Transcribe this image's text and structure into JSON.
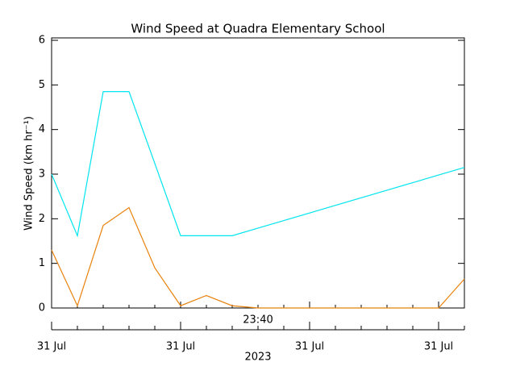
{
  "chart_data": {
    "type": "line",
    "title": "Wind Speed at Quadra Elementary School",
    "y_label": "Wind Speed (km hr⁻¹)",
    "annotations": [
      "23:40",
      "2023"
    ],
    "categories": [
      "31 Jul",
      null,
      null,
      null,
      null,
      "31 Jul",
      null,
      null,
      null,
      null,
      "31 Jul",
      null,
      null,
      null,
      null,
      "31 Jul",
      null
    ],
    "series": [
      {
        "color": "#00e5ee",
        "values": [
          3.0,
          1.62,
          4.85,
          4.85,
          3.24,
          1.62,
          1.62,
          1.62,
          1.79,
          1.96,
          2.13,
          2.3,
          2.47,
          2.64,
          2.81,
          2.98,
          3.15
        ]
      },
      {
        "color": "#e8820c",
        "values": [
          1.3,
          0.05,
          1.85,
          2.25,
          0.9,
          0.05,
          0.28,
          0.05,
          0,
          0,
          0,
          0,
          0,
          0,
          0,
          0,
          0.65
        ]
      }
    ],
    "ylim": [
      0,
      6
    ],
    "yticks": [
      0,
      1,
      2,
      3,
      4,
      5,
      6
    ]
  }
}
